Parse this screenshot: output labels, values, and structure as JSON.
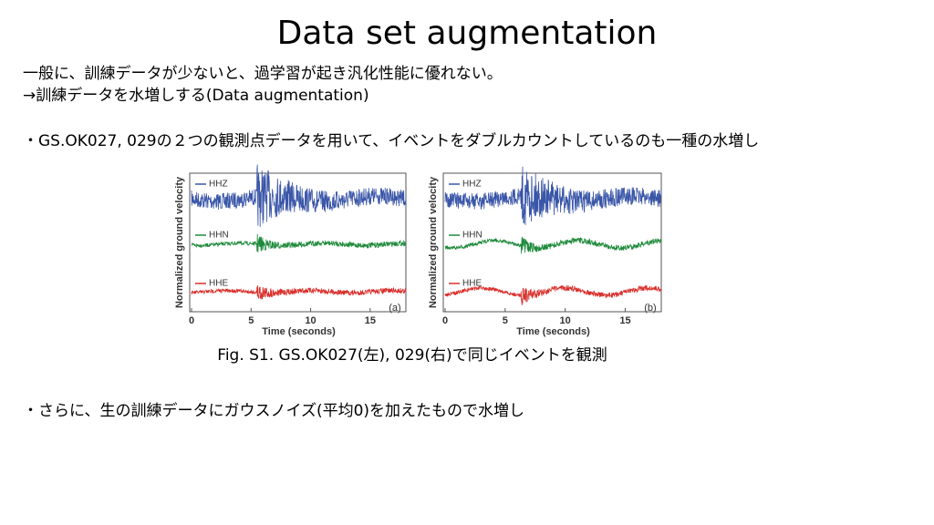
{
  "header": {
    "title": "Data set augmentation"
  },
  "body": {
    "lines": [
      "一般に、訓練データが少ないと、過学習が起き汎化性能に優れない。",
      "→訓練データを水増しする(Data augmentation)",
      "・GS.OK027, 029の２つの観測点データを用いて、イベントをダブルカウントしているのも一種の水増し"
    ],
    "figures": [
      {
        "panel": "(a)",
        "traces": [
          "HHZ",
          "HHN",
          "HHE"
        ],
        "ylabel": "Normalized ground velocity",
        "xlabel": "Time (seconds)",
        "xticks": [
          0,
          5,
          10,
          15
        ]
      },
      {
        "panel": "(b)",
        "traces": [
          "HHZ",
          "HHN",
          "HHE"
        ],
        "ylabel": "Normalized ground velocity",
        "xlabel": "Time (seconds)",
        "xticks": [
          0,
          5,
          10,
          15
        ]
      }
    ],
    "caption": "Fig. S1. GS.OK027(左), 029(右)で同じイベントを観測",
    "bullet2": "・さらに、生の訓練データにガウスノイズ(平均0)を加えたもので水増し"
  }
}
